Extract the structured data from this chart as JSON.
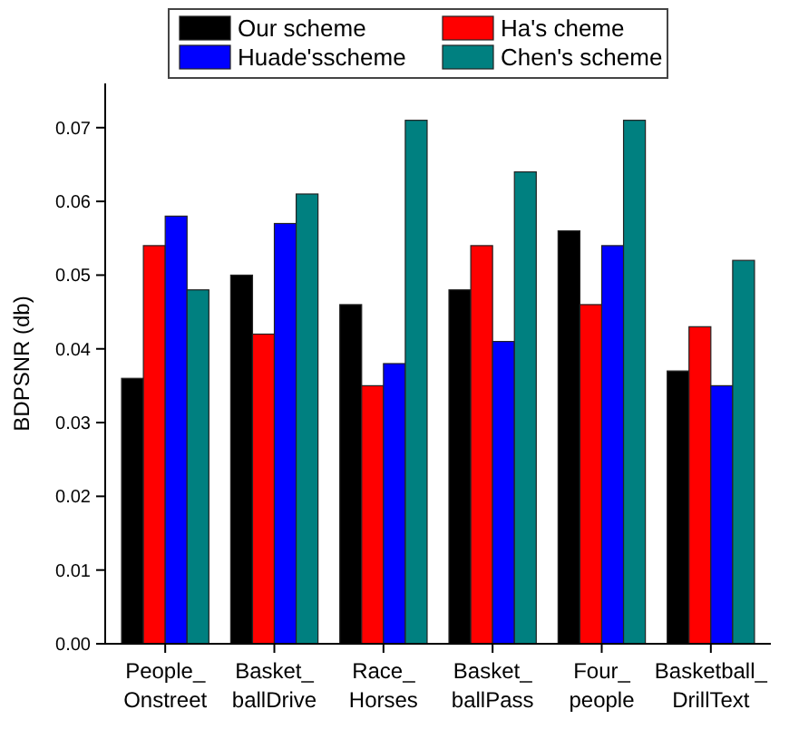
{
  "chart_data": {
    "type": "bar",
    "ylabel": "BDPSNR (db)",
    "categories": [
      "People_\nOnstreet",
      "Basket_\nballDrive",
      "Race_\nHorses",
      "Basket_\nballPass",
      "Four_\npeople",
      "Basketball_\nDrillText"
    ],
    "series": [
      {
        "name": "Our scheme",
        "color": "#000000",
        "values": [
          0.036,
          0.05,
          0.046,
          0.048,
          0.056,
          0.037
        ]
      },
      {
        "name": "Ha's cheme",
        "color": "#ff0000",
        "values": [
          0.054,
          0.042,
          0.035,
          0.054,
          0.046,
          0.043
        ]
      },
      {
        "name": "Huade'sscheme",
        "color": "#0000ff",
        "values": [
          0.058,
          0.057,
          0.038,
          0.041,
          0.054,
          0.035
        ]
      },
      {
        "name": "Chen's scheme",
        "color": "#008080",
        "values": [
          0.048,
          0.061,
          0.071,
          0.064,
          0.071,
          0.052
        ]
      }
    ],
    "ylim": [
      0,
      0.076
    ],
    "yticks": [
      {
        "value": 0,
        "label": "0.00"
      },
      {
        "value": 0.01,
        "label": "0.01"
      },
      {
        "value": 0.02,
        "label": "0.02"
      },
      {
        "value": 0.03,
        "label": "0.03"
      },
      {
        "value": 0.04,
        "label": "0.04"
      },
      {
        "value": 0.05,
        "label": "0.05"
      },
      {
        "value": 0.06,
        "label": "0.06"
      },
      {
        "value": 0.07,
        "label": "0.07"
      }
    ],
    "legend": "top",
    "grid": false
  }
}
